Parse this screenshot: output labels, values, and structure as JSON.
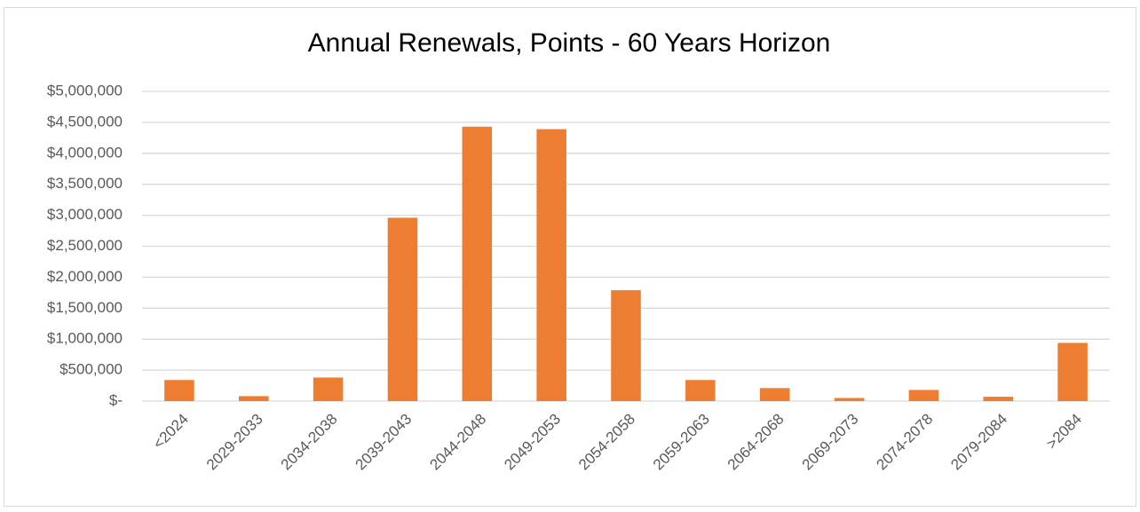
{
  "chart_data": {
    "type": "bar",
    "title": "Annual Renewals, Points - 60 Years Horizon",
    "categories": [
      "<2024",
      "2029-2033",
      "2034-2038",
      "2039-2043",
      "2044-2048",
      "2049-2053",
      "2054-2058",
      "2059-2063",
      "2064-2068",
      "2069-2073",
      "2074-2078",
      "2079-2084",
      ">2084"
    ],
    "values": [
      340000,
      80000,
      380000,
      2960000,
      4430000,
      4390000,
      1790000,
      340000,
      210000,
      50000,
      180000,
      70000,
      940000
    ],
    "color": "#ed7d31",
    "ylim": [
      0,
      5000000
    ],
    "yticks": [
      {
        "value": 0,
        "label": "$-"
      },
      {
        "value": 500000,
        "label": "$500,000"
      },
      {
        "value": 1000000,
        "label": "$1,000,000"
      },
      {
        "value": 1500000,
        "label": "$1,500,000"
      },
      {
        "value": 2000000,
        "label": "$2,000,000"
      },
      {
        "value": 2500000,
        "label": "$2,500,000"
      },
      {
        "value": 3000000,
        "label": "$3,000,000"
      },
      {
        "value": 3500000,
        "label": "$3,500,000"
      },
      {
        "value": 4000000,
        "label": "$4,000,000"
      },
      {
        "value": 4500000,
        "label": "$4,500,000"
      },
      {
        "value": 5000000,
        "label": "$5,000,000"
      }
    ],
    "grid": true
  }
}
